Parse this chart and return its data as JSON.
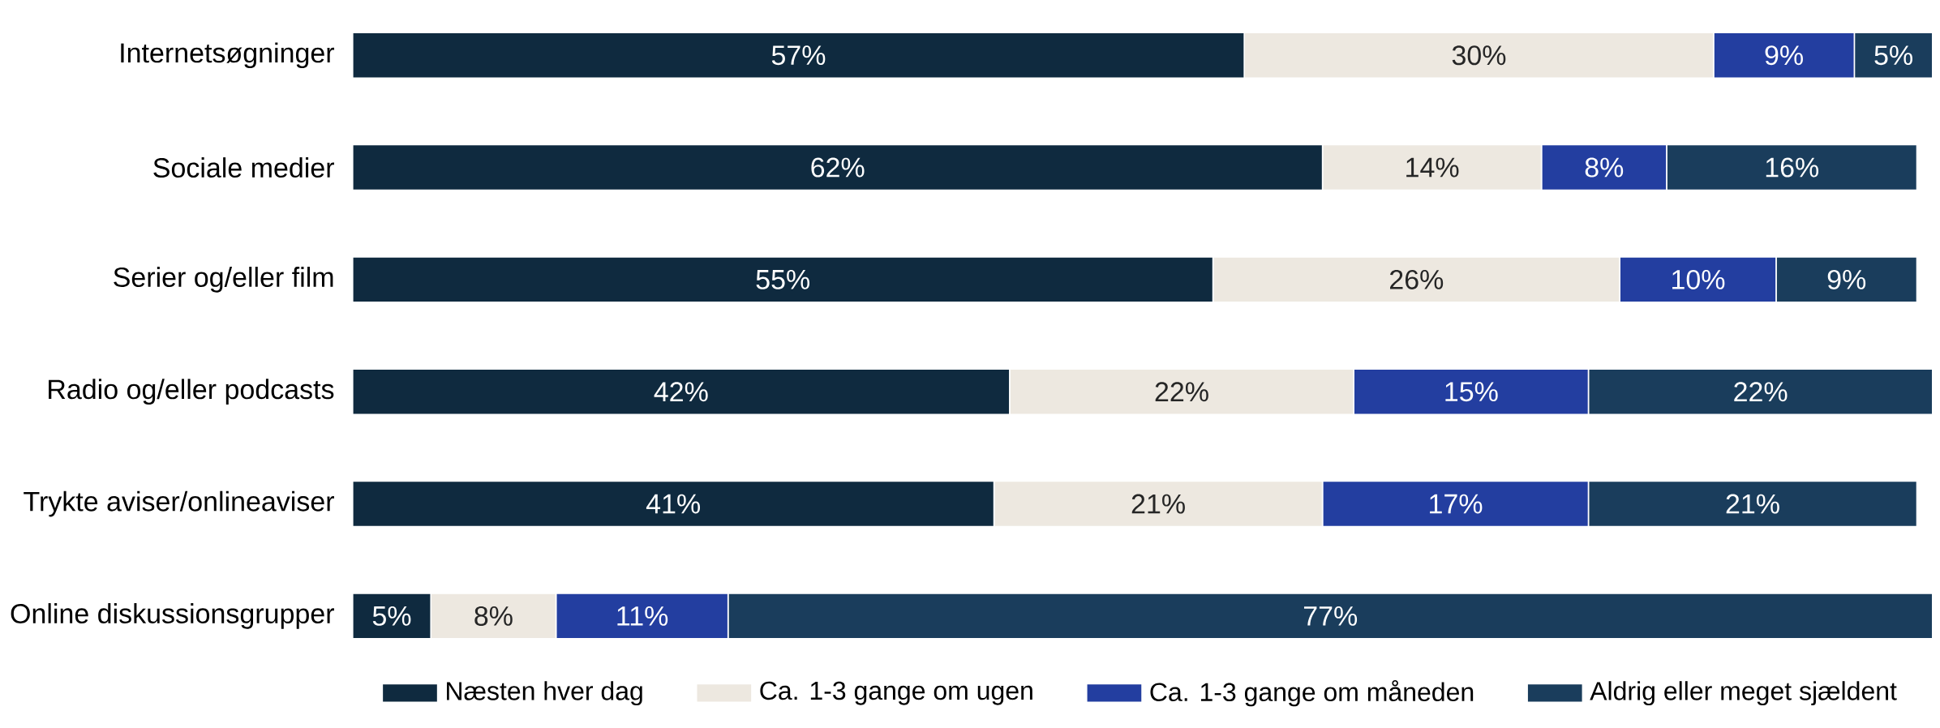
{
  "chart_data": {
    "type": "bar",
    "orientation": "horizontal",
    "stacked": true,
    "categories": [
      "Internetsøgninger",
      "Sociale medier",
      "Serier og/eller film",
      "Radio og/eller podcasts",
      "Trykte aviser/onlineaviser",
      "Online diskussionsgrupper"
    ],
    "series": [
      {
        "name": "Næsten hver dag",
        "color": "#0f2a3f",
        "values": [
          57,
          62,
          55,
          42,
          41,
          5
        ],
        "value_labels": [
          "57%",
          "62%",
          "55%",
          "42%",
          "41%",
          "5%"
        ]
      },
      {
        "name": "Ca. 1-3 gange om ugen",
        "color": "#ede8e0",
        "values": [
          30,
          14,
          26,
          22,
          21,
          8
        ],
        "value_labels": [
          "30%",
          "14%",
          "26%",
          "22%",
          "21%",
          "8%"
        ]
      },
      {
        "name": "Ca. 1-3 gange om måneden",
        "color": "#233ea0",
        "values": [
          9,
          8,
          10,
          15,
          17,
          11
        ],
        "value_labels": [
          "9%",
          "8%",
          "10%",
          "15%",
          "17%",
          "11%"
        ]
      },
      {
        "name": "Aldrig eller meget sjældent",
        "color": "#1a3d5c",
        "values": [
          5,
          16,
          9,
          22,
          21,
          77
        ],
        "value_labels": [
          "5%",
          "16%",
          "9%",
          "22%",
          "21%",
          "77%"
        ]
      }
    ],
    "legend": "bottom",
    "tick_labels": "y",
    "grid": false
  }
}
